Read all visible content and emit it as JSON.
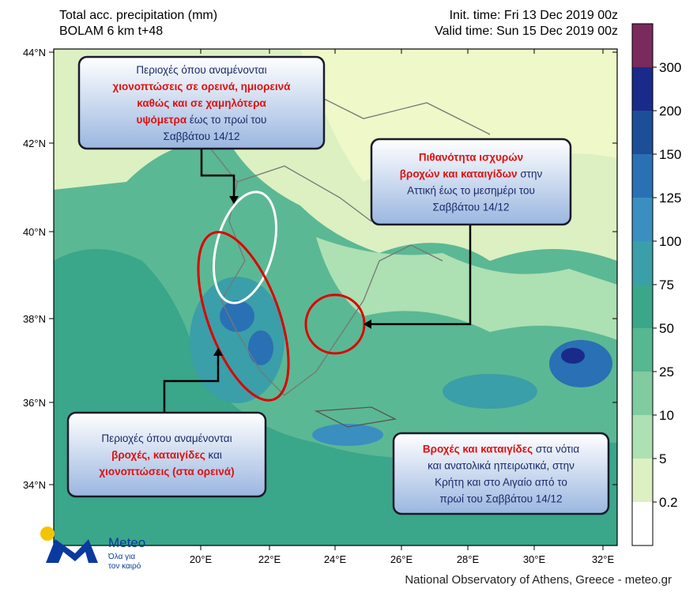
{
  "header": {
    "title": "Total acc. precipitation (mm)",
    "model": "BOLAM 6 km t+48",
    "init_time": "Init. time: Fri 13 Dec 2019 00z",
    "valid_time": "Valid time: Sun 15 Dec 2019 00z"
  },
  "lat_labels": [
    "44°N",
    "42°N",
    "40°N",
    "38°N",
    "36°N",
    "34°N"
  ],
  "lon_labels": [
    "20°E",
    "22°E",
    "24°E",
    "26°E",
    "28°E",
    "30°E",
    "32°E"
  ],
  "colorbar": {
    "levels": [
      300,
      200,
      150,
      125,
      100,
      75,
      50,
      25,
      10,
      5,
      0.2
    ],
    "colors": [
      "#7a2a5c",
      "#1a2a8a",
      "#1c4f98",
      "#2a70b4",
      "#3a8fc0",
      "#3a9fa8",
      "#3aa68a",
      "#55b890",
      "#80cba0",
      "#ade0b2",
      "#dcf0c2",
      "#ffffff"
    ]
  },
  "annotations": [
    {
      "lines": [
        [
          {
            "text": "Περιοχές όπου αναμένονται",
            "highlight": false
          }
        ],
        [
          {
            "text": "χιονοπτώσεις σε ορεινά, ημιορεινά",
            "highlight": true
          }
        ],
        [
          {
            "text": "καθώς και σε χαμηλότερα",
            "highlight": true
          }
        ],
        [
          {
            "text": "υψόμετρα",
            "highlight": true
          },
          {
            "text": " έως το πρωί του",
            "highlight": false
          }
        ],
        [
          {
            "text": "Σαββάτου 14/12",
            "highlight": false
          }
        ]
      ]
    },
    {
      "lines": [
        [
          {
            "text": "Πιθανότητα ισχυρών",
            "highlight": true
          }
        ],
        [
          {
            "text": "βροχών και καταιγίδων",
            "highlight": true
          },
          {
            "text": " στην",
            "highlight": false
          }
        ],
        [
          {
            "text": "Αττική έως το μεσημέρι του",
            "highlight": false
          }
        ],
        [
          {
            "text": "Σαββάτου 14/12",
            "highlight": false
          }
        ]
      ]
    },
    {
      "lines": [
        [
          {
            "text": "Περιοχές όπου αναμένονται",
            "highlight": false
          }
        ],
        [
          {
            "text": "βροχές, καταιγίδες",
            "highlight": true
          },
          {
            "text": " και",
            "highlight": false
          }
        ],
        [
          {
            "text": "χιονοπτώσεις (στα ορεινά)",
            "highlight": true
          }
        ]
      ]
    },
    {
      "lines": [
        [
          {
            "text": "Βροχές και καταιγίδες",
            "highlight": true
          },
          {
            "text": " στα νότια",
            "highlight": false
          }
        ],
        [
          {
            "text": "και ανατολικά ηπειρωτικά, στην",
            "highlight": false
          }
        ],
        [
          {
            "text": "Κρήτη και στο Αιγαίο από το",
            "highlight": false
          }
        ],
        [
          {
            "text": "πρωί του Σαββάτου 14/12",
            "highlight": false
          }
        ]
      ]
    }
  ],
  "logo": {
    "name": "Meteo",
    "slogan_1": "Όλα για",
    "slogan_2": "τον καιρό"
  },
  "footer": "National Observatory of Athens, Greece - meteo.gr"
}
